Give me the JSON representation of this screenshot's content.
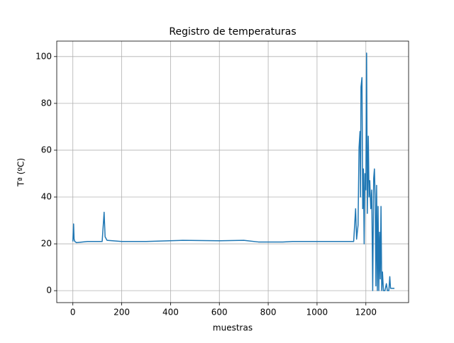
{
  "chart_data": {
    "type": "line",
    "title": "Registro de temperaturas",
    "x_label": "muestras",
    "y_label": "Tª (ºC)",
    "series": [
      {
        "name": "Tª",
        "color": "#1f77b4",
        "x": [
          0,
          3,
          5,
          8,
          15,
          60,
          120,
          128,
          132,
          140,
          200,
          300,
          450,
          600,
          700,
          760,
          860,
          900,
          1000,
          1150,
          1158,
          1162,
          1168,
          1172,
          1176,
          1178,
          1180,
          1184,
          1187,
          1190,
          1193,
          1196,
          1200,
          1203,
          1206,
          1210,
          1213,
          1216,
          1220,
          1224,
          1228,
          1232,
          1235,
          1238,
          1241,
          1244,
          1247,
          1250,
          1253,
          1256,
          1259,
          1262,
          1265,
          1268,
          1272,
          1278,
          1284,
          1288,
          1294,
          1298,
          1301,
          1305,
          1310,
          1317
        ],
        "values": [
          21,
          28.5,
          22,
          21,
          20.5,
          21,
          21,
          33.5,
          23,
          21.5,
          21,
          21,
          21.5,
          21.3,
          21.5,
          20.8,
          20.8,
          21,
          21,
          21,
          35,
          22,
          28,
          61,
          68,
          40,
          87,
          91,
          35,
          52,
          20,
          50,
          43,
          101.5,
          33,
          66,
          40,
          47,
          35,
          43,
          0,
          48,
          52,
          40,
          2,
          45,
          0,
          36,
          0,
          25,
          5,
          36,
          0,
          8,
          0,
          0,
          3,
          0,
          0,
          6,
          1,
          1,
          1,
          1
        ]
      }
    ],
    "xlim": [
      -66,
      1375
    ],
    "ylim": [
      -5.1,
      106.6
    ],
    "xticks": [
      0,
      200,
      400,
      600,
      800,
      1000,
      1200
    ],
    "yticks": [
      0,
      20,
      40,
      60,
      80,
      100
    ],
    "grid": true
  }
}
